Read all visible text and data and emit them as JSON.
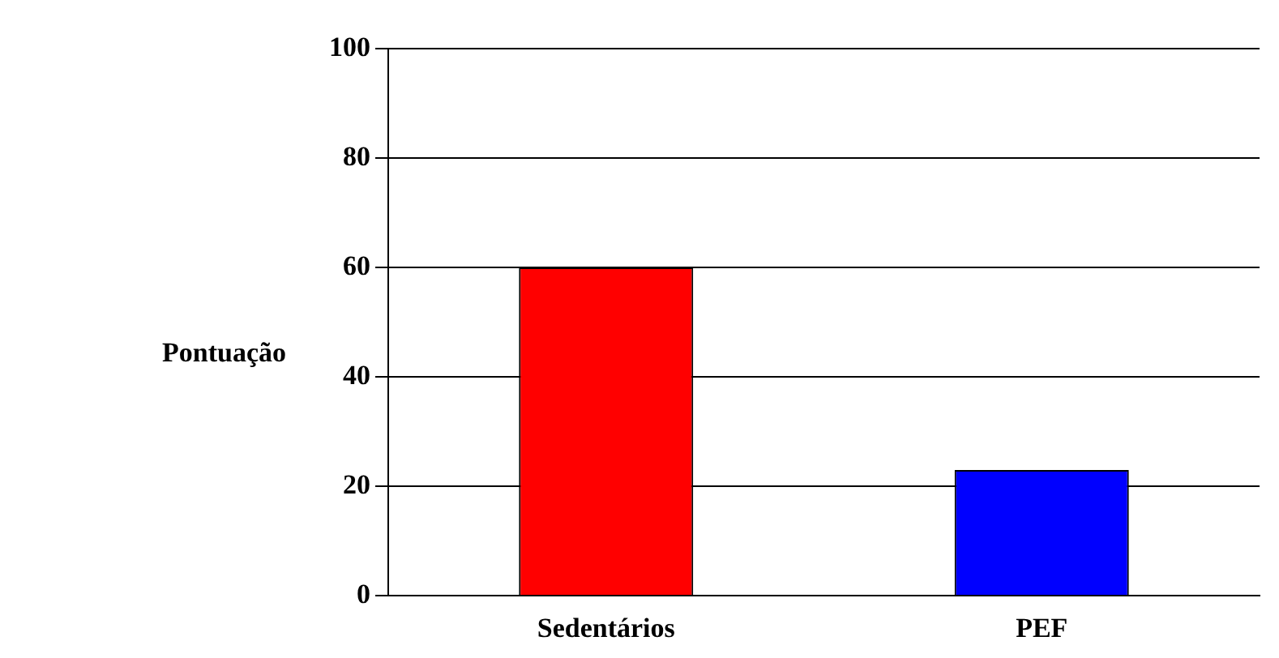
{
  "chart_data": {
    "type": "bar",
    "ylabel": "Pontuação",
    "categories": [
      "Sedentários",
      "PEF"
    ],
    "colors": [
      "#ff0000",
      "#0000ff"
    ],
    "values": [
      60,
      23
    ],
    "ylim": [
      0,
      100
    ],
    "yticks": [
      0,
      20,
      40,
      60,
      80,
      100
    ],
    "grid": "y",
    "legend": false
  }
}
